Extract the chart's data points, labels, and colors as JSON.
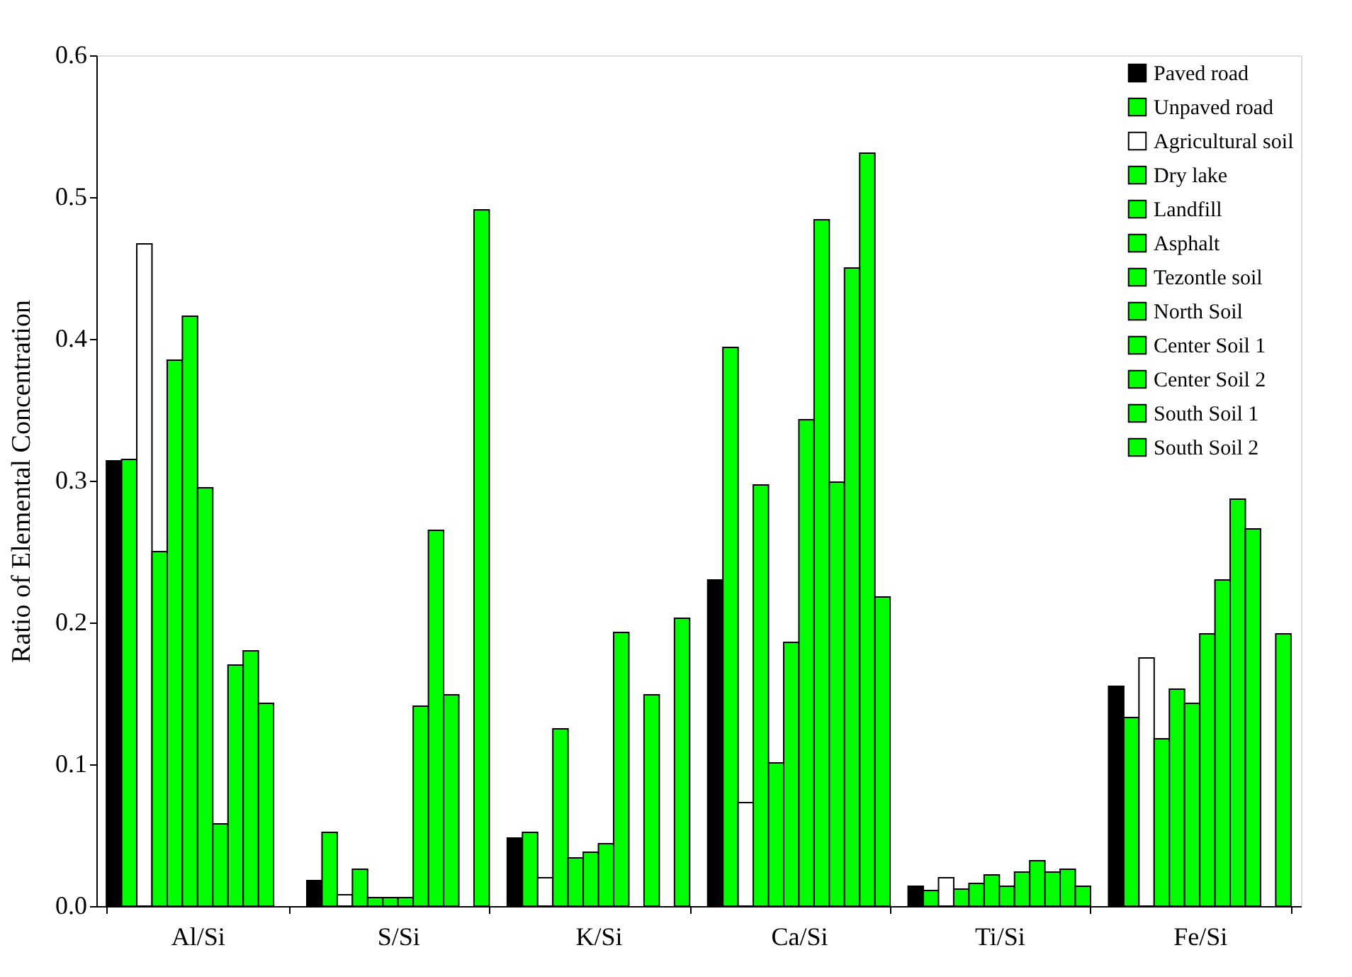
{
  "chart_data": {
    "type": "bar",
    "ylabel": "Ratio of Elemental Concentration",
    "categories": [
      "Al/Si",
      "S/Si",
      "K/Si",
      "Ca/Si",
      "Ti/Si",
      "Fe/Si"
    ],
    "ylim": [
      0,
      0.6
    ],
    "yticks": [
      {
        "value": 0,
        "label": "0.0"
      },
      0.1,
      0.2,
      0.3,
      0.4,
      0.5,
      0.6
    ],
    "grid": false,
    "legend": "top right",
    "series": [
      {
        "name": "Paved road",
        "color": "#000000",
        "values": [
          0.314,
          0.018,
          0.048,
          0.23,
          0.014,
          0.155
        ]
      },
      {
        "name": "Unpaved road",
        "color": "#00ff00",
        "values": [
          0.315,
          0.052,
          0.052,
          0.394,
          0.011,
          0.133
        ]
      },
      {
        "name": "Agricultural soil",
        "color": "#ffffff",
        "values": [
          0.467,
          0.008,
          0.02,
          0.073,
          0.02,
          0.175
        ]
      },
      {
        "name": "Dry lake",
        "color": "#00ff00",
        "values": [
          0.25,
          0.026,
          0.125,
          0.297,
          0.012,
          0.118
        ]
      },
      {
        "name": "Landfill",
        "color": "#00ff00",
        "values": [
          0.385,
          0.006,
          0.034,
          0.101,
          0.016,
          0.153
        ]
      },
      {
        "name": "Asphalt",
        "color": "#00ff00",
        "values": [
          0.416,
          0.006,
          0.038,
          0.186,
          0.022,
          0.143
        ]
      },
      {
        "name": "Tezontle soil",
        "color": "#00ff00",
        "values": [
          0.295,
          0.006,
          0.044,
          0.343,
          0.014,
          0.192
        ]
      },
      {
        "name": "North Soil",
        "color": "#00ff00",
        "values": [
          0.058,
          0.141,
          0.193,
          0.484,
          0.024,
          0.23
        ]
      },
      {
        "name": "Center Soil 1",
        "color": "#00ff00",
        "values": [
          0.17,
          0.265,
          null,
          0.299,
          0.032,
          0.287
        ]
      },
      {
        "name": "Center Soil 2",
        "color": "#00ff00",
        "values": [
          0.18,
          0.149,
          0.149,
          0.45,
          0.024,
          0.266
        ]
      },
      {
        "name": "South Soil 1",
        "color": "#00ff00",
        "values": [
          0.143,
          null,
          null,
          0.531,
          0.026,
          null
        ]
      },
      {
        "name": "South Soil 2",
        "color": "#00ff00",
        "values": [
          null,
          0.491,
          0.203,
          0.218,
          0.014,
          0.192
        ]
      }
    ]
  }
}
